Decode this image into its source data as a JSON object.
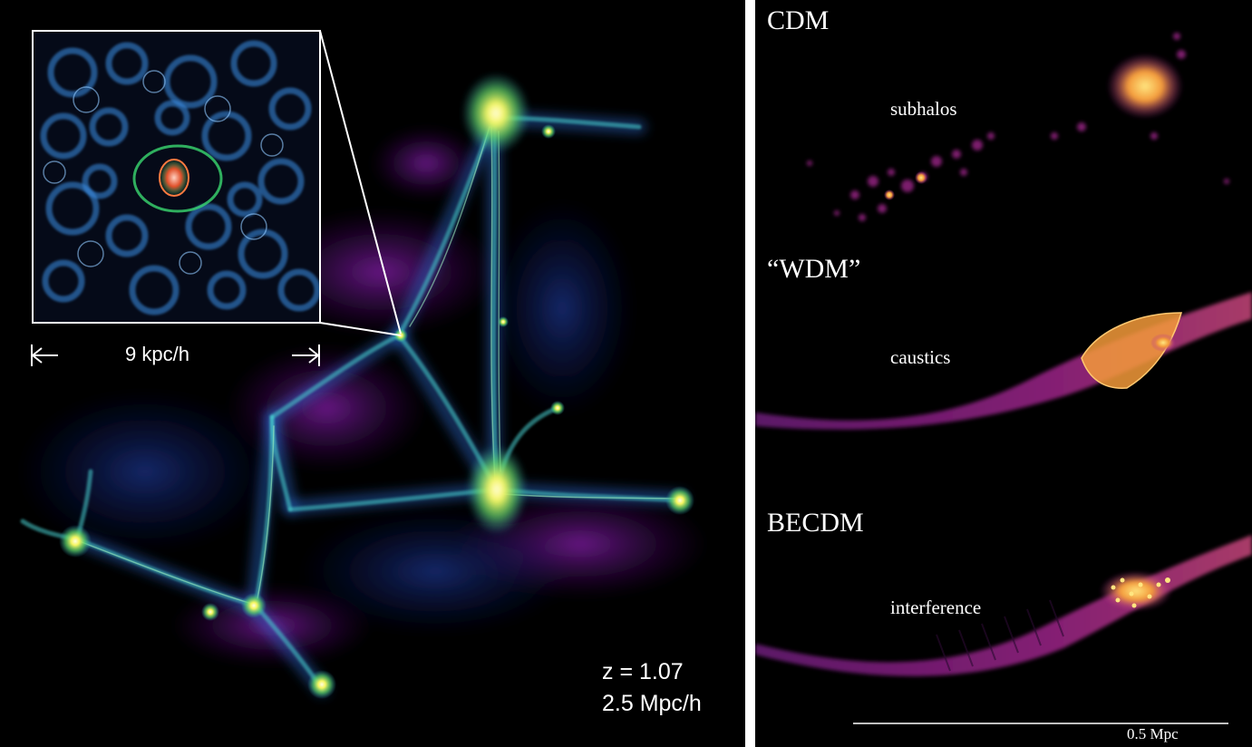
{
  "left_panel": {
    "inset_scale_label": "9 kpc/h",
    "redshift_label": "z = 1.07",
    "box_size_label": "2.5 Mpc/h"
  },
  "right_panel": {
    "models": [
      {
        "title": "CDM",
        "feature": "subhalos"
      },
      {
        "title": "“WDM”",
        "feature": "caustics"
      },
      {
        "title": "BECDM",
        "feature": "interference"
      }
    ],
    "scale_bar_label": "0.5 Mpc"
  },
  "colors": {
    "filament_blue": "#3a8fe8",
    "filament_cyan": "#3fd6c8",
    "halo_yellow": "#f5f560",
    "halo_green": "#6fe05a",
    "sheet_purple": "#7a1fa0",
    "density_magenta": "#b0289a",
    "density_orange": "#f39a3a",
    "density_yellow": "#ffe680"
  }
}
